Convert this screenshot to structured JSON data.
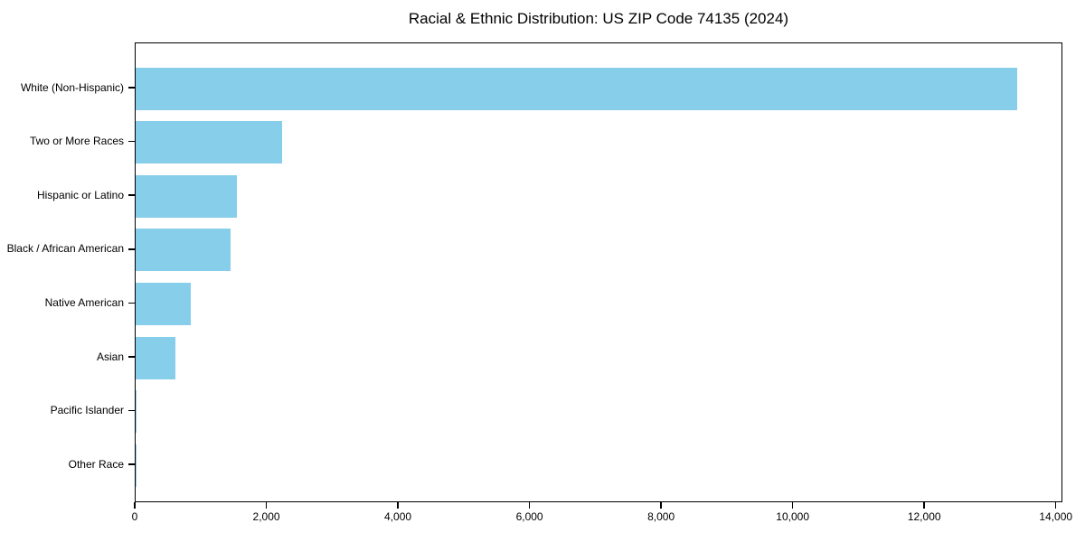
{
  "figure": {
    "background": "#ffffff",
    "text_color": "#000000",
    "axis_color": "#000000"
  },
  "chart_data": {
    "type": "bar",
    "orientation": "horizontal",
    "title": "Racial & Ethnic Distribution: US ZIP Code 74135 (2024)",
    "xlabel": "",
    "ylabel": "",
    "categories": [
      "White (Non-Hispanic)",
      "Two or More Races",
      "Hispanic or Latino",
      "Black / African American",
      "Native American",
      "Asian",
      "Pacific Islander",
      "Other Race"
    ],
    "values": [
      13400,
      2230,
      1540,
      1440,
      840,
      600,
      20,
      10
    ],
    "xlim": [
      0,
      14100
    ],
    "xticks": [
      0,
      2000,
      4000,
      6000,
      8000,
      10000,
      12000,
      14000
    ],
    "xtick_labels": [
      "0",
      "2,000",
      "4,000",
      "6,000",
      "8,000",
      "10,000",
      "12,000",
      "14,000"
    ],
    "bar_color": "#87CEEB",
    "grid": false,
    "legend": null
  }
}
